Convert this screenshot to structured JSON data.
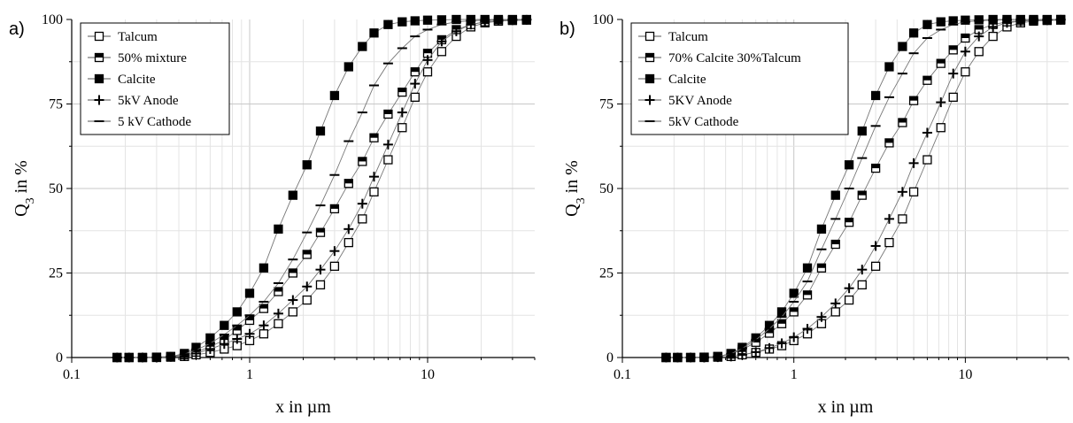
{
  "figure": {
    "xlabel": "x in µm",
    "ylabel_main": "Q",
    "ylabel_sub": "3",
    "ylabel_rest": " in %"
  },
  "chart_data": [
    {
      "panel_label": "a)",
      "type": "line",
      "xscale": "log",
      "xlim": [
        0.1,
        40
      ],
      "ylim": [
        0,
        100
      ],
      "xticks": [
        "0.1",
        "1",
        "10"
      ],
      "yticks": [
        "0",
        "25",
        "50",
        "75",
        "100"
      ],
      "xlabel": "x in µm",
      "ylabel": "Q3 in %",
      "grid": true,
      "legend_position": "top-left",
      "series": [
        {
          "name": "Talcum",
          "marker": "open-square",
          "x": [
            0.18,
            0.21,
            0.25,
            0.3,
            0.36,
            0.43,
            0.5,
            0.6,
            0.72,
            0.85,
            1.0,
            1.2,
            1.45,
            1.75,
            2.1,
            2.5,
            3.0,
            3.6,
            4.3,
            5.0,
            6.0,
            7.2,
            8.5,
            10,
            12,
            14.5,
            17.5,
            21,
            25,
            30,
            36
          ],
          "y": [
            0,
            0,
            0,
            0,
            0.1,
            0.3,
            0.8,
            1.5,
            2.5,
            3.5,
            5,
            7,
            10,
            13.5,
            17,
            21.5,
            27,
            34,
            41,
            49,
            58.5,
            68,
            77,
            84.5,
            90.5,
            95,
            97.8,
            99,
            99.5,
            99.7,
            99.8
          ]
        },
        {
          "name": "50% mixture",
          "marker": "half-square",
          "x": [
            0.18,
            0.21,
            0.25,
            0.3,
            0.36,
            0.43,
            0.5,
            0.6,
            0.72,
            0.85,
            1.0,
            1.2,
            1.45,
            1.75,
            2.1,
            2.5,
            3.0,
            3.6,
            4.3,
            5.0,
            6.0,
            7.2,
            8.5,
            10,
            12,
            14.5,
            17.5,
            21,
            25,
            30,
            36
          ],
          "y": [
            0,
            0,
            0,
            0.1,
            0.3,
            0.8,
            1.6,
            3.2,
            5.2,
            8,
            11,
            14.5,
            19.5,
            25,
            30.5,
            37,
            44,
            51.5,
            58,
            65,
            72,
            78.5,
            84.5,
            90,
            94,
            97,
            98.5,
            99.3,
            99.6,
            99.8,
            99.9
          ]
        },
        {
          "name": "Calcite",
          "marker": "filled-square",
          "x": [
            0.18,
            0.21,
            0.25,
            0.3,
            0.36,
            0.43,
            0.5,
            0.6,
            0.72,
            0.85,
            1.0,
            1.2,
            1.45,
            1.75,
            2.1,
            2.5,
            3.0,
            3.6,
            4.3,
            5.0,
            6.0,
            7.2,
            8.5,
            10,
            12,
            14.5,
            17.5,
            21,
            25,
            30,
            36
          ],
          "y": [
            0,
            0,
            0,
            0.1,
            0.3,
            1.2,
            3,
            5.8,
            9.5,
            13.5,
            19,
            26.5,
            38,
            48,
            57,
            67,
            77.5,
            86,
            92,
            96,
            98.5,
            99.3,
            99.6,
            99.8,
            99.9,
            100,
            100,
            100,
            100,
            100,
            100
          ]
        },
        {
          "name": "5kV Anode",
          "marker": "plus",
          "x": [
            0.18,
            0.21,
            0.25,
            0.3,
            0.36,
            0.43,
            0.5,
            0.6,
            0.72,
            0.85,
            1.0,
            1.2,
            1.45,
            1.75,
            2.1,
            2.5,
            3.0,
            3.6,
            4.3,
            5.0,
            6.0,
            7.2,
            8.5,
            10,
            12,
            14.5,
            17.5,
            21,
            25,
            30,
            36
          ],
          "y": [
            0,
            0,
            0,
            0,
            0.2,
            0.5,
            1.2,
            2.5,
            4,
            5.5,
            7,
            9.5,
            13,
            17,
            21,
            26,
            31.5,
            38,
            45.5,
            53.5,
            63,
            72.5,
            81,
            88,
            93.5,
            96.5,
            98.5,
            99.3,
            99.6,
            99.8,
            99.9
          ]
        },
        {
          "name": "5 kV Cathode",
          "marker": "dash",
          "x": [
            0.18,
            0.21,
            0.25,
            0.3,
            0.36,
            0.43,
            0.5,
            0.6,
            0.72,
            0.85,
            1.0,
            1.2,
            1.45,
            1.75,
            2.1,
            2.5,
            3.0,
            3.6,
            4.3,
            5.0,
            6.0,
            7.2,
            8.5,
            10,
            12,
            14.5,
            17.5,
            21,
            25,
            30,
            36
          ],
          "y": [
            0,
            0,
            0,
            0.1,
            0.3,
            1,
            2.2,
            4.2,
            6.8,
            9.5,
            12.5,
            16.5,
            22,
            29,
            37,
            45,
            54,
            64,
            72.5,
            80.5,
            87,
            91.5,
            95,
            97,
            98.5,
            99.3,
            99.6,
            99.8,
            99.9,
            100,
            100
          ]
        }
      ]
    },
    {
      "panel_label": "b)",
      "type": "line",
      "xscale": "log",
      "xlim": [
        0.1,
        40
      ],
      "ylim": [
        0,
        100
      ],
      "xticks": [
        "0.1",
        "1",
        "10"
      ],
      "yticks": [
        "0",
        "25",
        "50",
        "75",
        "100"
      ],
      "xlabel": "x in µm",
      "ylabel": "Q3 in %",
      "grid": true,
      "legend_position": "top-left",
      "series": [
        {
          "name": "Talcum",
          "marker": "open-square",
          "x": [
            0.18,
            0.21,
            0.25,
            0.3,
            0.36,
            0.43,
            0.5,
            0.6,
            0.72,
            0.85,
            1.0,
            1.2,
            1.45,
            1.75,
            2.1,
            2.5,
            3.0,
            3.6,
            4.3,
            5.0,
            6.0,
            7.2,
            8.5,
            10,
            12,
            14.5,
            17.5,
            21,
            25,
            30,
            36
          ],
          "y": [
            0,
            0,
            0,
            0,
            0.1,
            0.3,
            0.8,
            1.5,
            2.5,
            3.5,
            5,
            7,
            10,
            13.5,
            17,
            21.5,
            27,
            34,
            41,
            49,
            58.5,
            68,
            77,
            84.5,
            90.5,
            95,
            97.8,
            99,
            99.5,
            99.7,
            99.8
          ]
        },
        {
          "name": "70% Calcite 30%Talcum",
          "marker": "half-square",
          "x": [
            0.18,
            0.21,
            0.25,
            0.3,
            0.36,
            0.43,
            0.5,
            0.6,
            0.72,
            0.85,
            1.0,
            1.2,
            1.45,
            1.75,
            2.1,
            2.5,
            3.0,
            3.6,
            4.3,
            5.0,
            6.0,
            7.2,
            8.5,
            10,
            12,
            14.5,
            17.5,
            21,
            25,
            30,
            36
          ],
          "y": [
            0,
            0,
            0,
            0.1,
            0.3,
            1,
            2.3,
            4.5,
            7.2,
            10,
            13.5,
            18.5,
            26.5,
            33.5,
            40,
            48,
            56,
            63.5,
            69.5,
            76,
            82,
            87,
            91,
            94.5,
            97,
            98.5,
            99.3,
            99.6,
            99.8,
            99.9,
            100
          ]
        },
        {
          "name": "Calcite",
          "marker": "filled-square",
          "x": [
            0.18,
            0.21,
            0.25,
            0.3,
            0.36,
            0.43,
            0.5,
            0.6,
            0.72,
            0.85,
            1.0,
            1.2,
            1.45,
            1.75,
            2.1,
            2.5,
            3.0,
            3.6,
            4.3,
            5.0,
            6.0,
            7.2,
            8.5,
            10,
            12,
            14.5,
            17.5,
            21,
            25,
            30,
            36
          ],
          "y": [
            0,
            0,
            0,
            0.1,
            0.3,
            1.2,
            3,
            5.8,
            9.5,
            13.5,
            19,
            26.5,
            38,
            48,
            57,
            67,
            77.5,
            86,
            92,
            96,
            98.5,
            99.3,
            99.6,
            99.8,
            99.9,
            100,
            100,
            100,
            100,
            100,
            100
          ]
        },
        {
          "name": "5KV Anode",
          "marker": "plus",
          "x": [
            0.18,
            0.21,
            0.25,
            0.3,
            0.36,
            0.43,
            0.5,
            0.6,
            0.72,
            0.85,
            1.0,
            1.2,
            1.45,
            1.75,
            2.1,
            2.5,
            3.0,
            3.6,
            4.3,
            5.0,
            6.0,
            7.2,
            8.5,
            10,
            12,
            14.5,
            17.5,
            21,
            25,
            30,
            36
          ],
          "y": [
            0,
            0,
            0,
            0,
            0.1,
            0.3,
            0.8,
            1.6,
            2.8,
            4.2,
            6,
            8.5,
            12,
            16,
            20.5,
            26,
            33,
            41,
            49,
            57.5,
            66.5,
            75.5,
            84,
            90.5,
            95,
            97.8,
            99,
            99.5,
            99.7,
            99.8,
            99.9
          ]
        },
        {
          "name": "5kV Cathode",
          "marker": "dash",
          "x": [
            0.18,
            0.21,
            0.25,
            0.3,
            0.36,
            0.43,
            0.5,
            0.6,
            0.72,
            0.85,
            1.0,
            1.2,
            1.45,
            1.75,
            2.1,
            2.5,
            3.0,
            3.6,
            4.3,
            5.0,
            6.0,
            7.2,
            8.5,
            10,
            12,
            14.5,
            17.5,
            21,
            25,
            30,
            36
          ],
          "y": [
            0,
            0,
            0,
            0.1,
            0.3,
            1.1,
            2.7,
            5.2,
            8.5,
            12,
            16.5,
            22.5,
            32,
            41,
            50,
            59,
            68.5,
            77,
            84,
            90,
            94.5,
            97,
            98.5,
            99.3,
            99.6,
            99.8,
            99.9,
            100,
            100,
            100,
            100
          ]
        }
      ]
    }
  ]
}
